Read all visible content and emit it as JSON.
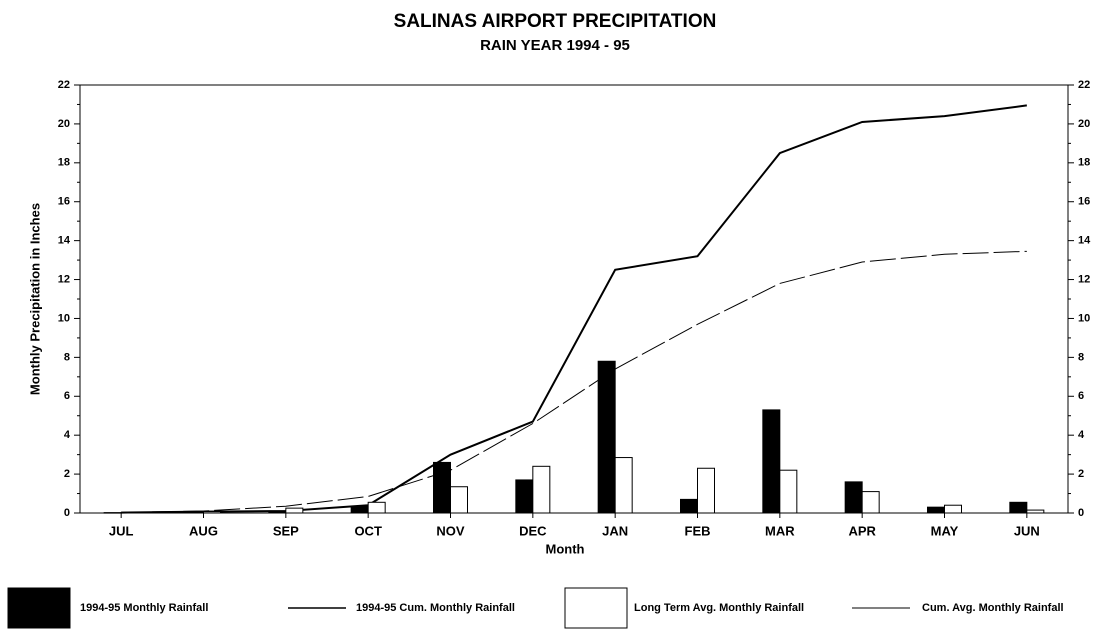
{
  "chart_data": {
    "type": "combo",
    "title": "SALINAS AIRPORT PRECIPITATION",
    "subtitle": "RAIN YEAR 1994 - 95",
    "y_label": "Monthly Precipitation in Inches",
    "x_label": "Month",
    "categories": [
      "JUL",
      "AUG",
      "SEP",
      "OCT",
      "NOV",
      "DEC",
      "JAN",
      "FEB",
      "MAR",
      "APR",
      "MAY",
      "JUN"
    ],
    "series": [
      {
        "name": "1994-95 Monthly Rainfall",
        "type": "bar",
        "color": "#000000",
        "values": [
          0.02,
          0.05,
          0.1,
          0.35,
          2.6,
          1.7,
          7.8,
          0.7,
          5.3,
          1.6,
          0.3,
          0.55
        ]
      },
      {
        "name": "1994-95 Cum. Monthly Rainfall",
        "type": "line",
        "color": "#000000",
        "dashed": false,
        "values": [
          0.02,
          0.07,
          0.1,
          0.4,
          3.0,
          4.7,
          12.5,
          13.2,
          18.5,
          20.1,
          20.4,
          20.95
        ]
      },
      {
        "name": "Long Term Avg. Monthly Rainfall",
        "type": "bar",
        "color": "#ffffff",
        "values": [
          0.03,
          0.07,
          0.25,
          0.55,
          1.35,
          2.4,
          2.85,
          2.3,
          2.2,
          1.1,
          0.4,
          0.15
        ]
      },
      {
        "name": "Cum. Avg. Monthly Rainfall",
        "type": "line",
        "color": "#000000",
        "dashed": true,
        "values": [
          0.03,
          0.1,
          0.35,
          0.85,
          2.2,
          4.6,
          7.4,
          9.7,
          11.8,
          12.9,
          13.3,
          13.45
        ]
      }
    ],
    "ylim": [
      0,
      22
    ],
    "yticks": [
      0,
      2,
      4,
      6,
      8,
      10,
      12,
      14,
      16,
      18,
      20,
      22
    ],
    "y2lim": [
      0,
      22
    ],
    "y2ticks": [
      0,
      2,
      4,
      6,
      8,
      10,
      12,
      14,
      16,
      18,
      20,
      22
    ],
    "legend": "bottom"
  }
}
